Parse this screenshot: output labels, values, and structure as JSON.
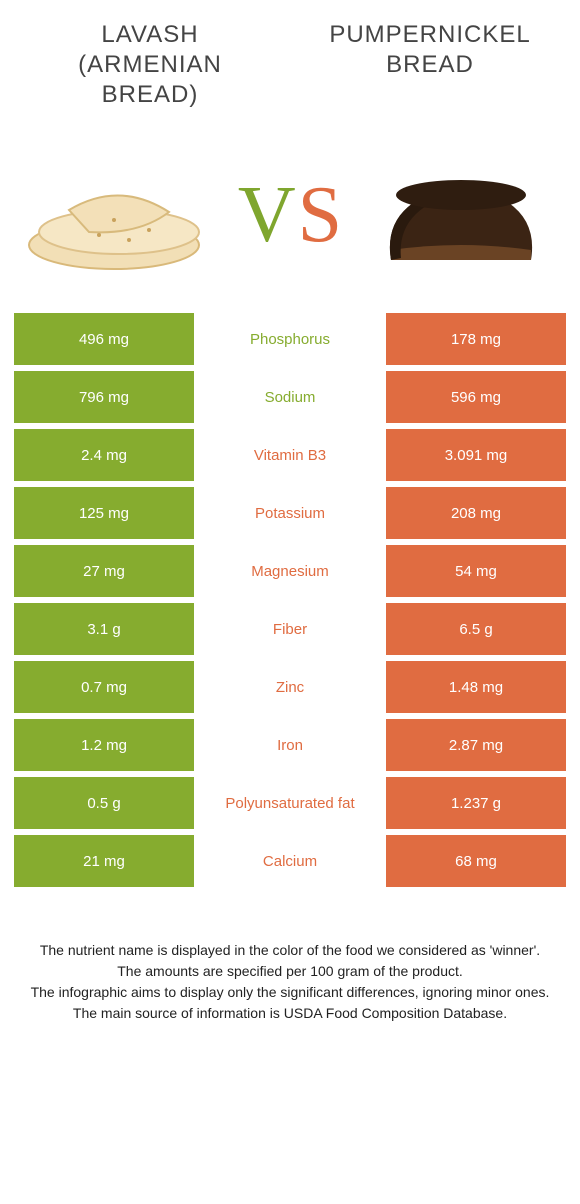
{
  "colors": {
    "left": "#86ac2f",
    "right": "#e06c41",
    "bg": "#ffffff",
    "title": "#444444",
    "footer": "#222222"
  },
  "header": {
    "left_title": "LAVASH (ARMENIAN BREAD)",
    "right_title": "PUMPERNICKEL BREAD",
    "vs_v": "V",
    "vs_s": "S"
  },
  "rows": [
    {
      "label": "Phosphorus",
      "left": "496 mg",
      "right": "178 mg",
      "winner": "left"
    },
    {
      "label": "Sodium",
      "left": "796 mg",
      "right": "596 mg",
      "winner": "left"
    },
    {
      "label": "Vitamin B3",
      "left": "2.4 mg",
      "right": "3.091 mg",
      "winner": "right"
    },
    {
      "label": "Potassium",
      "left": "125 mg",
      "right": "208 mg",
      "winner": "right"
    },
    {
      "label": "Magnesium",
      "left": "27 mg",
      "right": "54 mg",
      "winner": "right"
    },
    {
      "label": "Fiber",
      "left": "3.1 g",
      "right": "6.5 g",
      "winner": "right"
    },
    {
      "label": "Zinc",
      "left": "0.7 mg",
      "right": "1.48 mg",
      "winner": "right"
    },
    {
      "label": "Iron",
      "left": "1.2 mg",
      "right": "2.87 mg",
      "winner": "right"
    },
    {
      "label": "Polyunsaturated fat",
      "left": "0.5 g",
      "right": "1.237 g",
      "winner": "right"
    },
    {
      "label": "Calcium",
      "left": "21 mg",
      "right": "68 mg",
      "winner": "right"
    }
  ],
  "footer": {
    "line1": "The nutrient name is displayed in the color of the food we considered as 'winner'.",
    "line2": "The amounts are specified per 100 gram of the product.",
    "line3": "The infographic aims to display only the significant differences, ignoring minor ones.",
    "line4": "The main source of information is USDA Food Composition Database."
  }
}
